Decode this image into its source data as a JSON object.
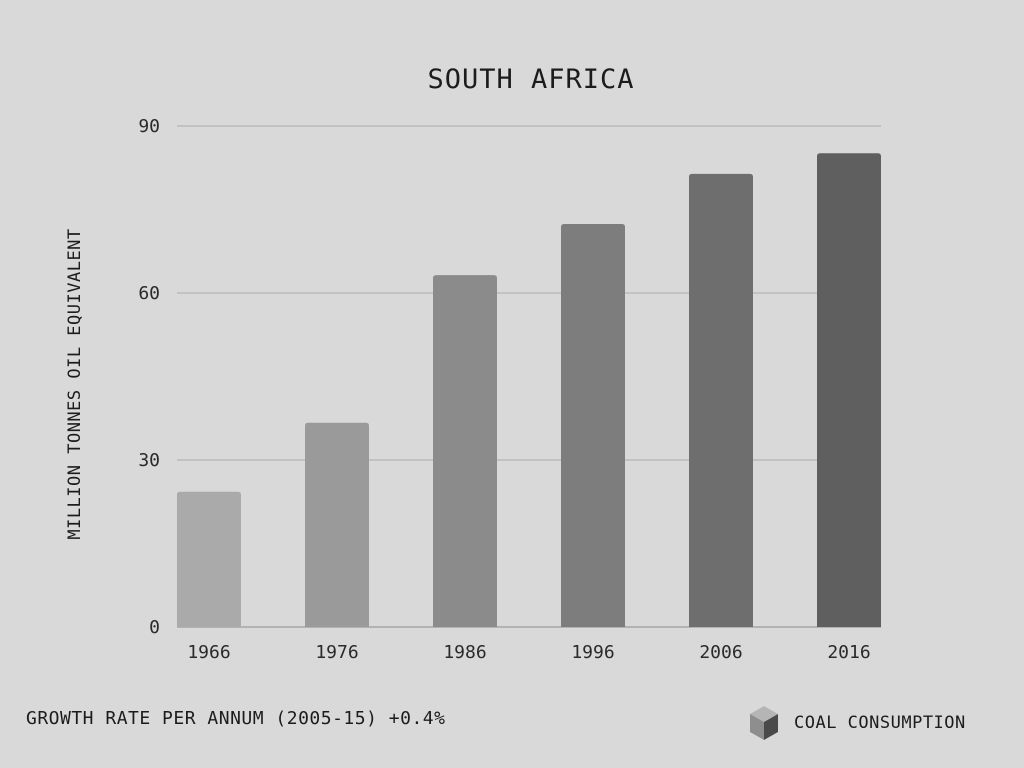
{
  "chart_data": {
    "type": "bar",
    "title": "SOUTH AFRICA",
    "ylabel": "MILLION TONNES OIL EQUIVALENT",
    "xlabel": "",
    "categories": [
      "1966",
      "1976",
      "1986",
      "1996",
      "2006",
      "2016"
    ],
    "series": [
      {
        "name": "COAL CONSUMPTION",
        "values": [
          24.3,
          36.7,
          63.2,
          72.4,
          81.4,
          85.1
        ]
      }
    ],
    "ylim": [
      0,
      90
    ],
    "yticks": [
      "0",
      "30",
      "60",
      "90"
    ],
    "grid": true,
    "legend_position": "bottom-right",
    "bar_colors": [
      "#aaaaaa",
      "#9a9a9a",
      "#8b8b8b",
      "#7d7d7d",
      "#6e6e6e",
      "#5f5f5f"
    ]
  },
  "footer": {
    "growth_text": "GROWTH RATE PER ANNUM (2005-15) +0.4%"
  },
  "legend": {
    "label": "COAL CONSUMPTION",
    "icon": "cube-icon"
  }
}
